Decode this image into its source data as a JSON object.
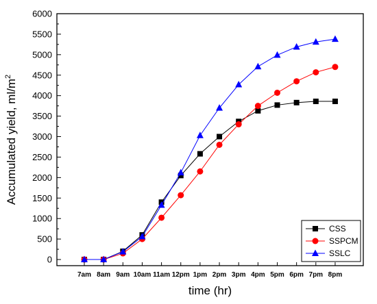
{
  "chart_data": {
    "type": "line",
    "xlabel": "time (hr)",
    "ylabel": "Accumulated yield, ml/m",
    "ylabel_superscript": "2",
    "categories": [
      "7am",
      "8am",
      "9am",
      "10am",
      "11am",
      "12pm",
      "1pm",
      "2pm",
      "3pm",
      "4pm",
      "5pm",
      "6pm",
      "7pm",
      "8pm"
    ],
    "ylim": [
      -150,
      6000
    ],
    "yticks": [
      0,
      500,
      1000,
      1500,
      2000,
      2500,
      3000,
      3500,
      4000,
      4500,
      5000,
      5500,
      6000
    ],
    "grid": false,
    "legend_position": "bottom-right",
    "series": [
      {
        "name": "CSS",
        "color": "#000000",
        "marker": "square",
        "values": [
          0,
          0,
          200,
          600,
          1400,
          2050,
          2580,
          3000,
          3370,
          3630,
          3770,
          3830,
          3860,
          3860
        ]
      },
      {
        "name": "SSPCM",
        "color": "#ff0000",
        "marker": "circle",
        "values": [
          0,
          0,
          150,
          500,
          1020,
          1570,
          2150,
          2800,
          3300,
          3750,
          4070,
          4350,
          4570,
          4700
        ]
      },
      {
        "name": "SSLC",
        "color": "#0000ff",
        "marker": "triangle",
        "values": [
          0,
          0,
          190,
          560,
          1330,
          2120,
          3030,
          3700,
          4270,
          4710,
          4990,
          5190,
          5310,
          5380
        ]
      }
    ]
  }
}
